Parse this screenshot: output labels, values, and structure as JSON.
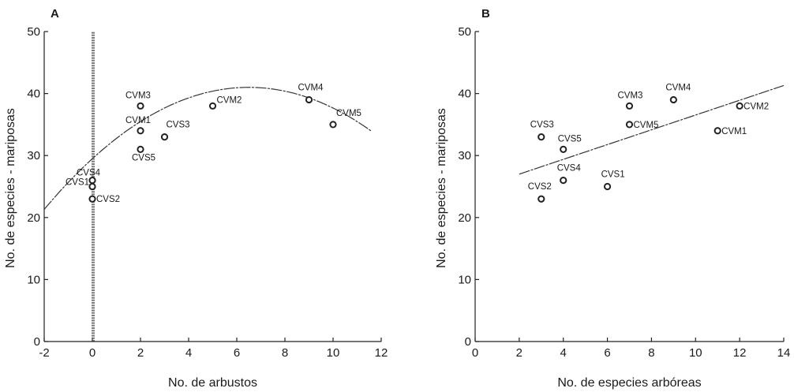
{
  "chart_data": [
    {
      "type": "scatter",
      "panel_label": "A",
      "title": "",
      "xlabel": "No. de arbustos",
      "ylabel": "No. de especies - mariposas",
      "xlim": [
        -2,
        12
      ],
      "ylim": [
        0,
        50
      ],
      "xticks": [
        -2,
        0,
        2,
        4,
        6,
        8,
        10,
        12
      ],
      "yticks": [
        0,
        10,
        20,
        30,
        40,
        50
      ],
      "grid": false,
      "points": [
        {
          "label": "CVM3",
          "x": 2,
          "y": 38
        },
        {
          "label": "CVM1",
          "x": 2,
          "y": 34
        },
        {
          "label": "CVS3",
          "x": 3,
          "y": 33
        },
        {
          "label": "CVS5",
          "x": 2,
          "y": 31
        },
        {
          "label": "CVM2",
          "x": 5,
          "y": 38
        },
        {
          "label": "CVM4",
          "x": 9,
          "y": 39
        },
        {
          "label": "CVM5",
          "x": 10,
          "y": 35
        },
        {
          "label": "CVS4",
          "x": 0,
          "y": 26
        },
        {
          "label": "CVS1",
          "x": 0,
          "y": 25
        },
        {
          "label": "CVS2",
          "x": 0,
          "y": 23
        }
      ],
      "fit": {
        "kind": "quadratic",
        "vertex_x": 6.5,
        "vertex_y": 41,
        "a": -0.2725,
        "x_range": [
          -2,
          11.6
        ]
      },
      "reference_line_x": 0
    },
    {
      "type": "scatter",
      "panel_label": "B",
      "title": "",
      "xlabel": "No. de especies arbóreas",
      "ylabel": "No. de especies - mariposas",
      "xlim": [
        0,
        14
      ],
      "ylim": [
        0,
        50
      ],
      "xticks": [
        0,
        2,
        4,
        6,
        8,
        10,
        12,
        14
      ],
      "yticks": [
        0,
        10,
        20,
        30,
        40,
        50
      ],
      "grid": false,
      "points": [
        {
          "label": "CVM3",
          "x": 7,
          "y": 38
        },
        {
          "label": "CVM4",
          "x": 9,
          "y": 39
        },
        {
          "label": "CVM2",
          "x": 12,
          "y": 38
        },
        {
          "label": "CVM5",
          "x": 7,
          "y": 35
        },
        {
          "label": "CVM1",
          "x": 11,
          "y": 34
        },
        {
          "label": "CVS3",
          "x": 3,
          "y": 33
        },
        {
          "label": "CVS5",
          "x": 4,
          "y": 31
        },
        {
          "label": "CVS4",
          "x": 4,
          "y": 26
        },
        {
          "label": "CVS1",
          "x": 6,
          "y": 25
        },
        {
          "label": "CVS2",
          "x": 3,
          "y": 23
        }
      ],
      "fit": {
        "kind": "linear",
        "x_range": [
          2,
          14
        ],
        "y_range": [
          27,
          41.3
        ]
      }
    }
  ]
}
